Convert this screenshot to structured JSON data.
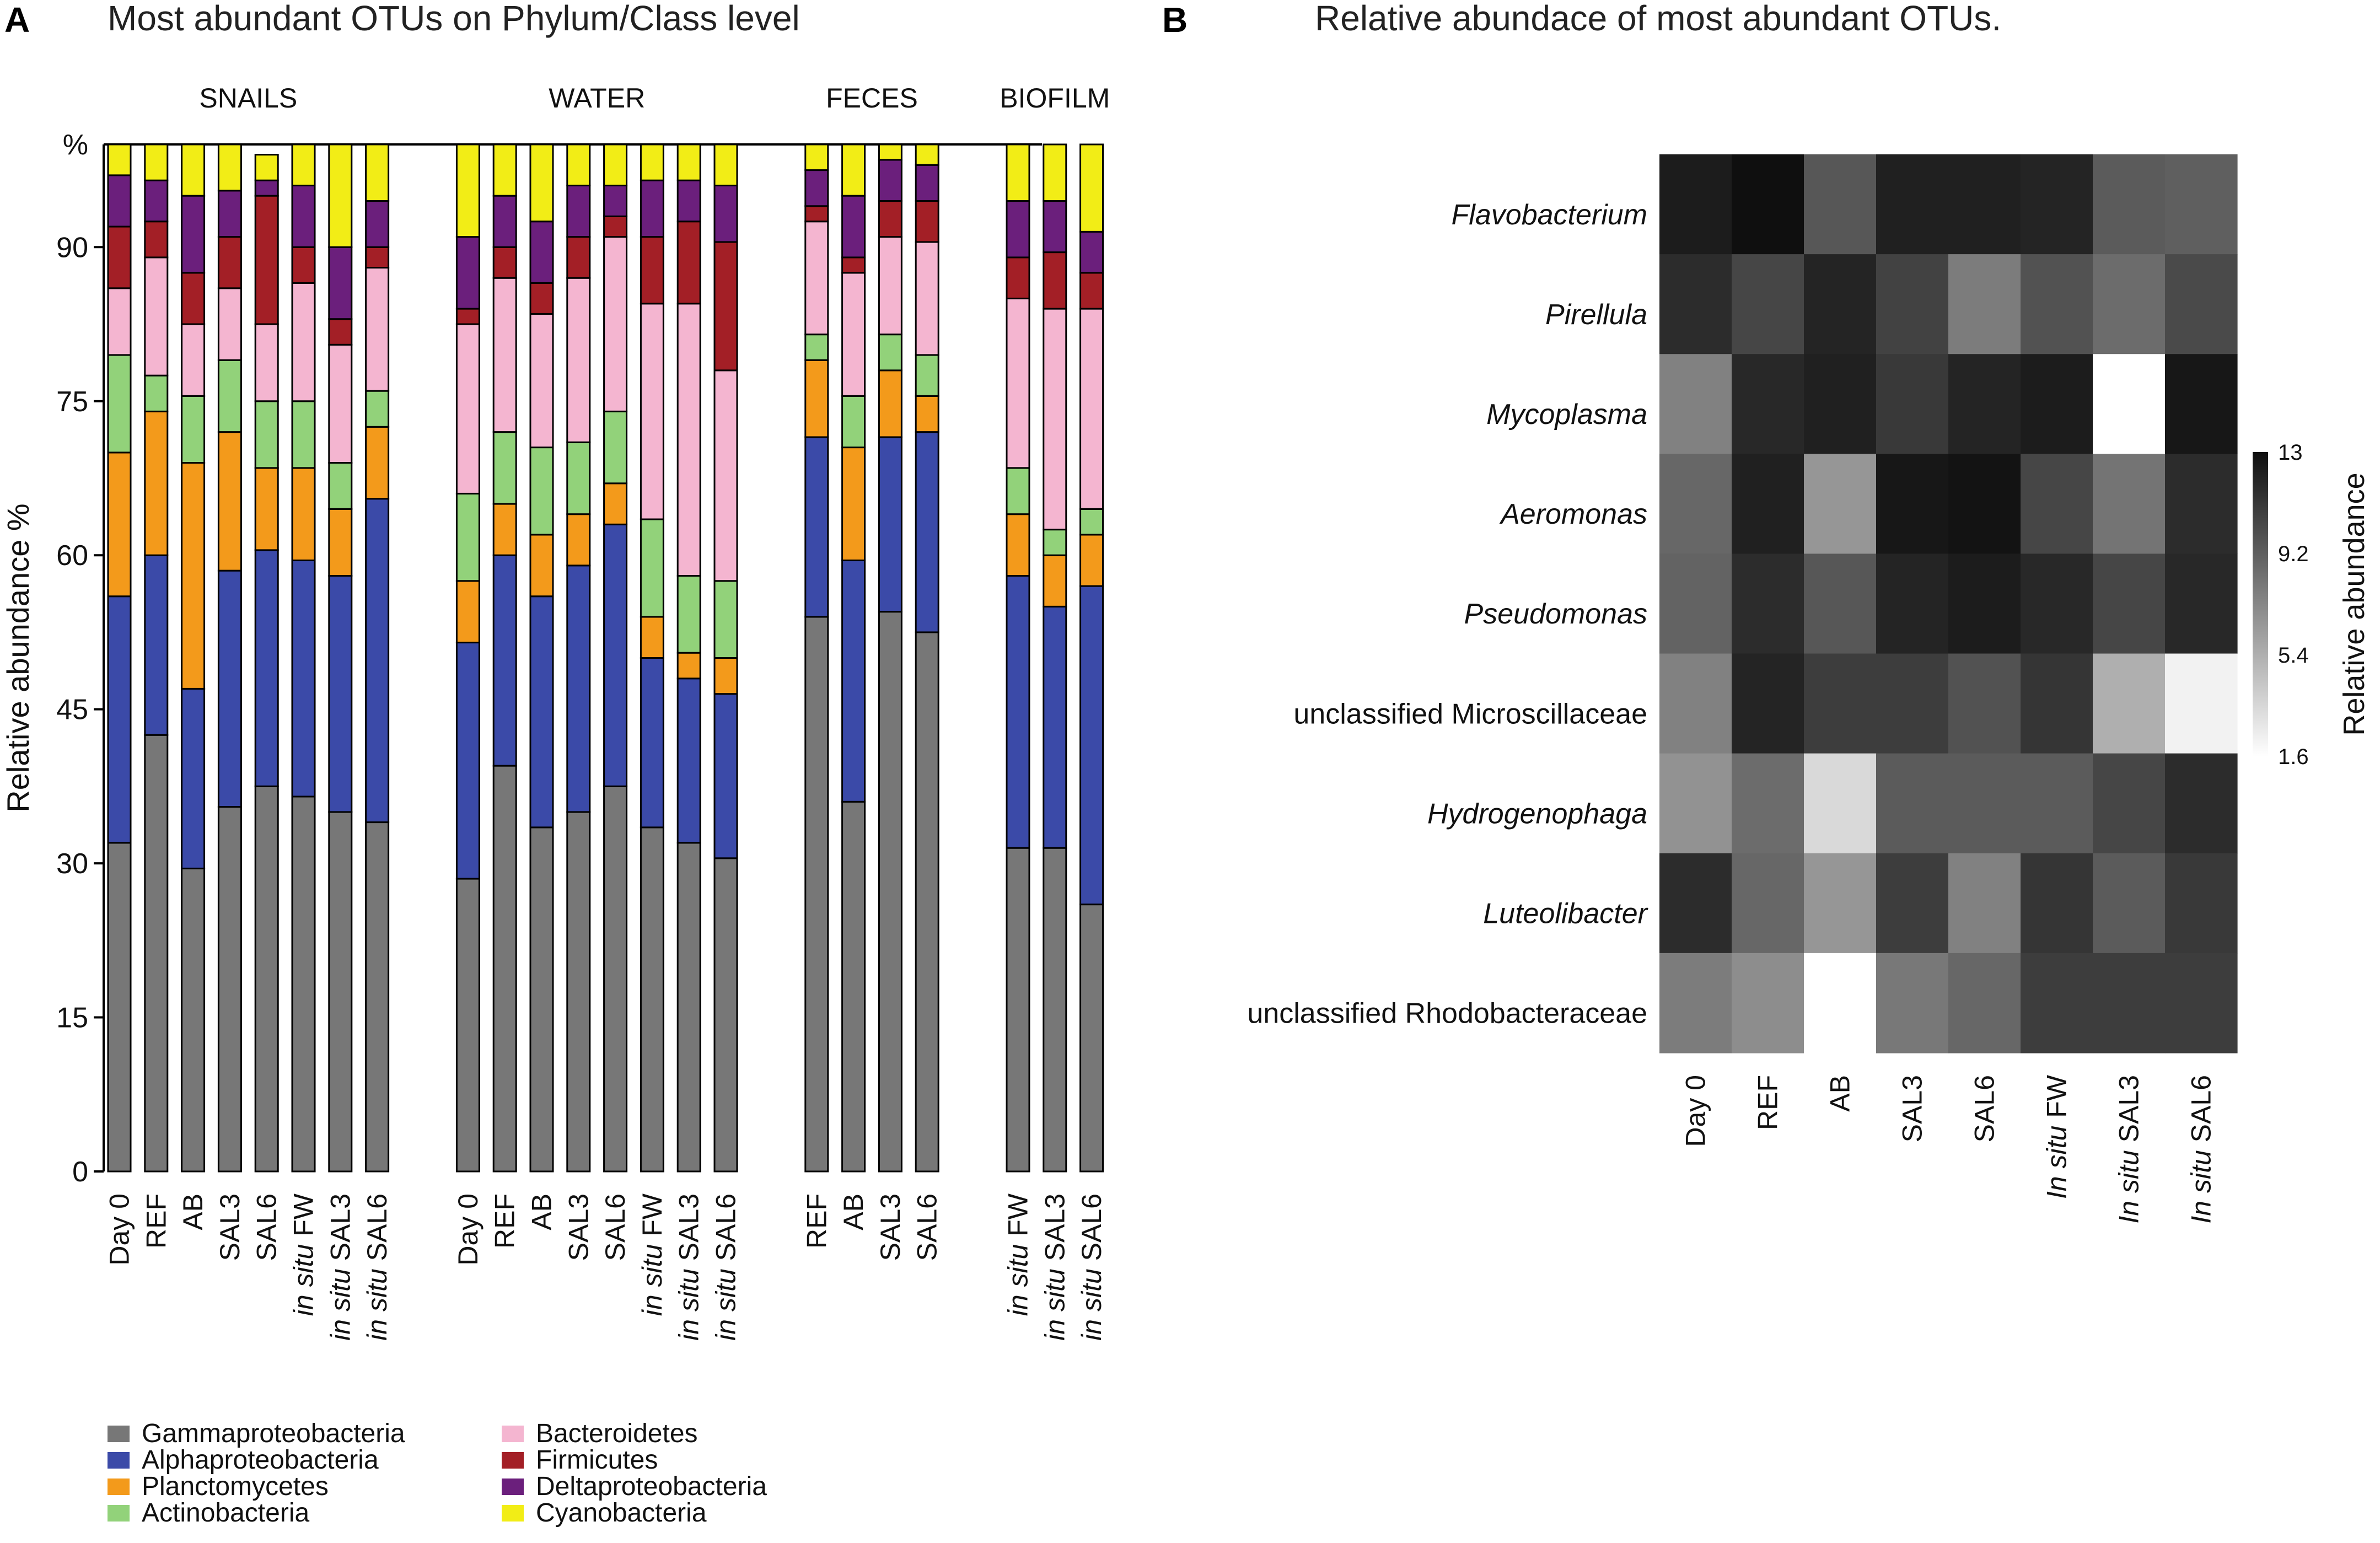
{
  "panel_a": {
    "letter": "A",
    "title": "Most abundant OTUs on Phylum/Class level"
  },
  "panel_b": {
    "letter": "B",
    "title": "Relative abundace of  most abundant OTUs."
  },
  "colors": {
    "Gammaproteobacteria": "#777777",
    "Alphaproteobacteria": "#3b4aa8",
    "Planctomycetes": "#f39a1b",
    "Actinobacteria": "#92d27a",
    "Bacteroidetes": "#f4b5d0",
    "Firmicutes": "#a31f26",
    "Deltaproteobacteria": "#6b1f7c",
    "Cyanobacteria": "#f2ed16"
  },
  "chart_data": [
    {
      "type": "bar",
      "stacked": true,
      "title": "Most abundant OTUs on Phylum/Class level",
      "ylabel": "Relative abundance %",
      "ylim": [
        0,
        100
      ],
      "yticks": [
        0,
        15,
        30,
        45,
        60,
        75,
        90
      ],
      "y_unit_label": "%",
      "series_names": [
        "Gammaproteobacteria",
        "Alphaproteobacteria",
        "Planctomycetes",
        "Actinobacteria",
        "Bacteroidetes",
        "Firmicutes",
        "Deltaproteobacteria",
        "Cyanobacteria"
      ],
      "legend": {
        "placement": "bottom",
        "items": [
          "Gammaproteobacteria",
          "Alphaproteobacteria",
          "Planctomycetes",
          "Actinobacteria",
          "Bacteroidetes",
          "Firmicutes",
          "Deltaproteobacteria",
          "Cyanobacteria"
        ]
      },
      "groups": [
        {
          "name": "SNAILS",
          "bars": [
            {
              "prefix": "",
              "label": "Day 0",
              "values": [
                32,
                24,
                14,
                9.5,
                6.5,
                6,
                5,
                3
              ]
            },
            {
              "prefix": "",
              "label": "REF",
              "values": [
                42.5,
                17.5,
                14,
                3.5,
                11.5,
                3.5,
                4,
                3.5
              ]
            },
            {
              "prefix": "",
              "label": "AB",
              "values": [
                29.5,
                17.5,
                22,
                6.5,
                7,
                5,
                7.5,
                5
              ]
            },
            {
              "prefix": "",
              "label": "SAL3",
              "values": [
                35.5,
                23,
                13.5,
                7,
                7,
                5,
                4.5,
                4.5
              ]
            },
            {
              "prefix": "",
              "label": "SAL6",
              "values": [
                37.5,
                23,
                8,
                6.5,
                7.5,
                12.5,
                1.5,
                2.5
              ]
            },
            {
              "prefix": "in situ",
              "label": "FW",
              "values": [
                36.5,
                23,
                9,
                6.5,
                11.5,
                3.5,
                6,
                4
              ]
            },
            {
              "prefix": "in situ",
              "label": "SAL3",
              "values": [
                35,
                23,
                6.5,
                4.5,
                11.5,
                2.5,
                7,
                10
              ]
            },
            {
              "prefix": "in situ",
              "label": "SAL6",
              "values": [
                34,
                31.5,
                7,
                3.5,
                12,
                2,
                4.5,
                5.5
              ]
            }
          ]
        },
        {
          "name": "WATER",
          "bars": [
            {
              "prefix": "",
              "label": "Day 0",
              "values": [
                28.5,
                23,
                6,
                8.5,
                16.5,
                1.5,
                7,
                9
              ]
            },
            {
              "prefix": "",
              "label": "REF",
              "values": [
                39.5,
                20.5,
                5,
                7,
                15,
                3,
                5,
                5
              ]
            },
            {
              "prefix": "",
              "label": "AB",
              "values": [
                33.5,
                22.5,
                6,
                8.5,
                13,
                3,
                6,
                7.5
              ]
            },
            {
              "prefix": "",
              "label": "SAL3",
              "values": [
                35,
                24,
                5,
                7,
                16,
                4,
                5,
                4
              ]
            },
            {
              "prefix": "",
              "label": "SAL6",
              "values": [
                37.5,
                25.5,
                4,
                7,
                17,
                2,
                3,
                4
              ]
            },
            {
              "prefix": "in situ",
              "label": "FW",
              "values": [
                33.5,
                16.5,
                4,
                9.5,
                21,
                6.5,
                5.5,
                3.5
              ]
            },
            {
              "prefix": "in situ",
              "label": "SAL3",
              "values": [
                32,
                16,
                2.5,
                7.5,
                26.5,
                8,
                4,
                3.5
              ]
            },
            {
              "prefix": "in situ",
              "label": "SAL6",
              "values": [
                30.5,
                16,
                3.5,
                7.5,
                20.5,
                12.5,
                5.5,
                4
              ]
            }
          ]
        },
        {
          "name": "FECES",
          "bars": [
            {
              "prefix": "",
              "label": "REF",
              "values": [
                54,
                17.5,
                7.5,
                2.5,
                11,
                1.5,
                3.5,
                2.5
              ]
            },
            {
              "prefix": "",
              "label": "AB",
              "values": [
                36,
                23.5,
                11,
                5,
                12,
                1.5,
                6,
                5
              ]
            },
            {
              "prefix": "",
              "label": "SAL3",
              "values": [
                54.5,
                17,
                6.5,
                3.5,
                9.5,
                3.5,
                4,
                1.5
              ]
            },
            {
              "prefix": "",
              "label": "SAL6",
              "values": [
                52.5,
                19.5,
                3.5,
                4,
                11,
                4,
                3.5,
                2
              ]
            }
          ]
        },
        {
          "name": "BIOFILM",
          "bars": [
            {
              "prefix": "in situ",
              "label": "FW",
              "values": [
                31.5,
                26.5,
                6,
                4.5,
                16.5,
                4,
                5.5,
                5.5
              ]
            },
            {
              "prefix": "in situ",
              "label": "SAL3",
              "values": [
                31.5,
                23.5,
                5,
                2.5,
                21.5,
                5.5,
                5,
                5.5
              ]
            },
            {
              "prefix": "in situ",
              "label": "SAL6",
              "values": [
                26,
                31,
                5,
                2.5,
                19.5,
                3.5,
                4,
                8.5
              ]
            }
          ]
        }
      ]
    },
    {
      "type": "heatmap",
      "title": "Relative abundace of  most abundant OTUs.",
      "rows": [
        {
          "label": "Flavobacterium",
          "italic": true
        },
        {
          "label": "Pirellula",
          "italic": true
        },
        {
          "label": "Mycoplasma",
          "italic": true
        },
        {
          "label": "Aeromonas",
          "italic": true
        },
        {
          "label": "Pseudomonas",
          "italic": true
        },
        {
          "label": "unclassified Microscillaceae",
          "italic": false
        },
        {
          "label": "Hydrogenophaga",
          "italic": true
        },
        {
          "label": "Luteolibacter",
          "italic": true
        },
        {
          "label": "unclassified Rhodobacteraceae",
          "italic": false
        }
      ],
      "columns": [
        {
          "prefix": "",
          "label": "Day 0"
        },
        {
          "prefix": "",
          "label": "REF"
        },
        {
          "prefix": "",
          "label": "AB"
        },
        {
          "prefix": "",
          "label": "SAL3"
        },
        {
          "prefix": "",
          "label": "SAL6"
        },
        {
          "prefix": "In situ",
          "label": "FW"
        },
        {
          "prefix": "In situ",
          "label": "SAL3"
        },
        {
          "prefix": "In situ",
          "label": "SAL6"
        }
      ],
      "values": [
        [
          12.4,
          13.0,
          9.6,
          12.2,
          12.2,
          12.0,
          9.4,
          9.2
        ],
        [
          11.6,
          10.4,
          12.0,
          10.6,
          7.8,
          9.8,
          8.6,
          10.2
        ],
        [
          7.6,
          11.8,
          12.2,
          11.0,
          12.0,
          12.4,
          1.6,
          12.6
        ],
        [
          8.8,
          12.2,
          6.6,
          12.6,
          12.8,
          10.4,
          8.2,
          11.6
        ],
        [
          9.0,
          11.6,
          9.6,
          12.0,
          12.4,
          11.8,
          10.4,
          11.8
        ],
        [
          7.6,
          12.0,
          10.8,
          10.8,
          9.8,
          11.2,
          5.4,
          2.2
        ],
        [
          6.8,
          8.6,
          3.4,
          9.4,
          9.4,
          9.4,
          10.4,
          11.6
        ],
        [
          11.6,
          8.8,
          6.6,
          10.8,
          7.6,
          11.2,
          9.4,
          11.0
        ],
        [
          7.8,
          7.0,
          1.6,
          8.0,
          8.8,
          10.8,
          10.8,
          10.8
        ]
      ],
      "colorbar": {
        "label": "Relative abundance",
        "ticks": [
          "13",
          "9.2",
          "5.4",
          "1.6"
        ],
        "range": [
          1.6,
          13
        ]
      }
    }
  ]
}
